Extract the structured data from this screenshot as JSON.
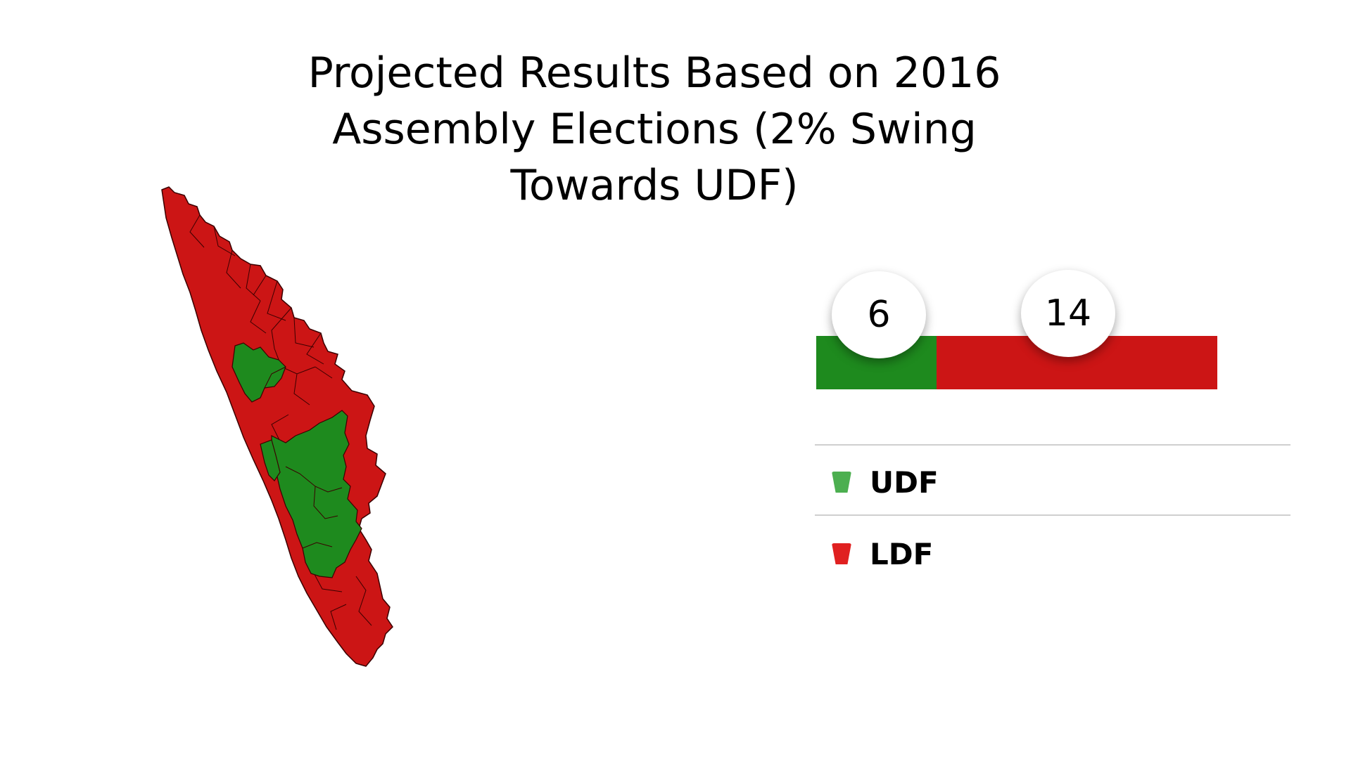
{
  "title": "Projected Results Based on 2016 Assembly Elections (2% Swing Towards UDF)",
  "colors": {
    "udf": "#1e8a1e",
    "ldf": "#cc1515",
    "udf_legend": "#4caf50",
    "ldf_legend": "#e02020",
    "map_border": "#3a0000"
  },
  "seats": [
    {
      "party": "UDF",
      "value": 6
    },
    {
      "party": "LDF",
      "value": 14
    }
  ],
  "legend": [
    {
      "label": "UDF",
      "color": "#4caf50"
    },
    {
      "label": "LDF",
      "color": "#e02020"
    }
  ]
}
